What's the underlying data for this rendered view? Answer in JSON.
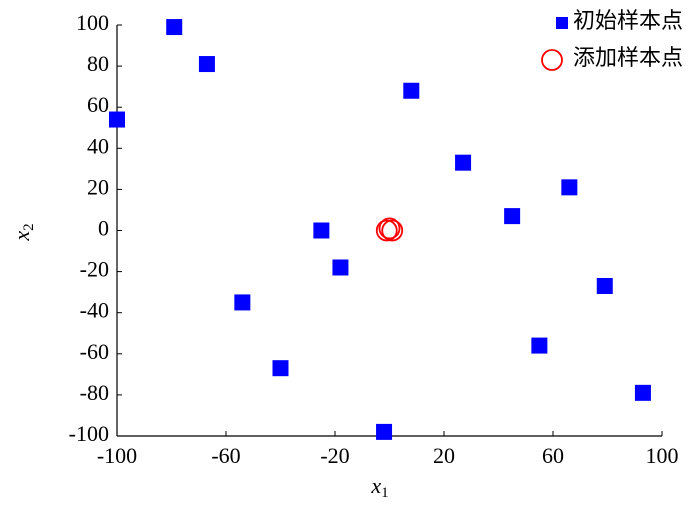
{
  "chart_data": {
    "type": "scatter",
    "xlabel": {
      "text": "x",
      "sub": "1"
    },
    "ylabel": {
      "text": "x",
      "sub": "2"
    },
    "xlim": [
      -100,
      100
    ],
    "xticks": [
      -100,
      -60,
      -20,
      20,
      60,
      100
    ],
    "ylim": [
      -100,
      100
    ],
    "yticks": [
      -100,
      -80,
      -60,
      -40,
      -20,
      0,
      20,
      40,
      60,
      80,
      100
    ],
    "legend": "upper right",
    "series": [
      {
        "name": "初始样本点",
        "color": "#0000ff",
        "marker": "square",
        "x": [
          -79,
          -67,
          -100,
          8,
          27,
          66,
          45,
          -25,
          -18,
          -54,
          79,
          55,
          -40,
          93,
          -2
        ],
        "values": [
          99,
          81,
          54,
          68,
          33,
          21,
          7,
          0,
          -18,
          -35,
          -27,
          -56,
          -67,
          -79,
          -98
        ]
      },
      {
        "name": "添加样本点",
        "color": "#ff0000",
        "marker": "circle",
        "x": [
          -1,
          0,
          1
        ],
        "values": [
          0,
          1,
          0
        ]
      }
    ]
  }
}
